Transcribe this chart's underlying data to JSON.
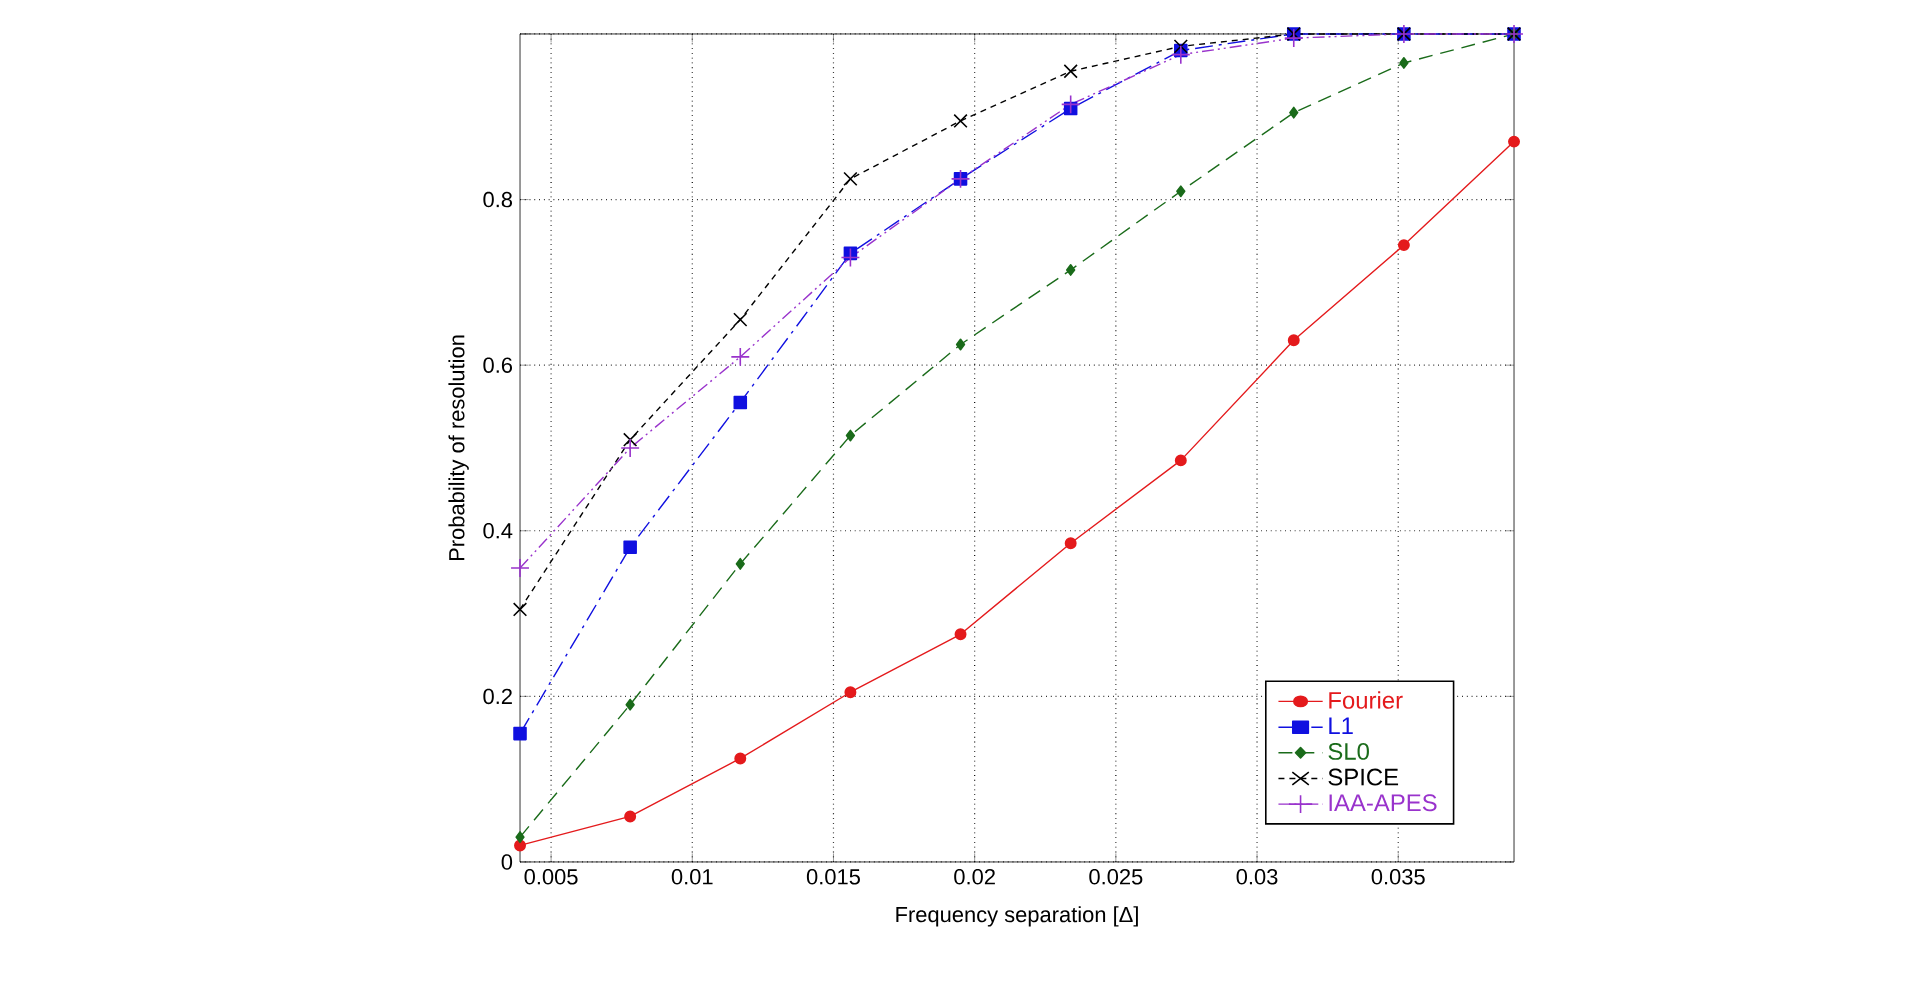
{
  "chart_data": {
    "type": "line",
    "xlabel": "Frequency separation [Δ]",
    "ylabel": "Probability of resolution",
    "x": [
      0.0039,
      0.0078,
      0.0117,
      0.0156,
      0.0195,
      0.0234,
      0.0273,
      0.0313,
      0.0352,
      0.0391
    ],
    "xlim": [
      0.0039,
      0.0391
    ],
    "ylim": [
      0,
      1
    ],
    "xticks": [
      0.005,
      0.01,
      0.015,
      0.02,
      0.025,
      0.03,
      0.035
    ],
    "yticks": [
      0,
      0.2,
      0.4,
      0.6,
      0.8,
      {
        "value": 1,
        "label": null
      }
    ],
    "grid": true,
    "legend": "bottom right",
    "series": [
      {
        "name": "Fourier",
        "color": "#e41a1c",
        "marker": "circle",
        "line_style": "solid",
        "values": [
          0.02,
          0.055,
          0.125,
          0.205,
          0.275,
          0.385,
          0.485,
          0.63,
          0.745,
          0.87
        ]
      },
      {
        "name": "L1",
        "color": "#1010e0",
        "marker": "square",
        "line_style": "dashdot",
        "values": [
          0.155,
          0.38,
          0.555,
          0.735,
          0.825,
          0.91,
          0.98,
          1.0,
          1.0,
          1.0
        ]
      },
      {
        "name": "SL0",
        "color": "#1a6b1a",
        "marker": "diamond",
        "line_style": "dashed",
        "values": [
          0.03,
          0.19,
          0.36,
          0.515,
          0.625,
          0.715,
          0.81,
          0.905,
          0.965,
          1.0
        ]
      },
      {
        "name": "SPICE",
        "color": "#000000",
        "marker": "cross",
        "line_style": "densely dashed",
        "values": [
          0.305,
          0.51,
          0.655,
          0.825,
          0.895,
          0.955,
          0.985,
          1.0,
          1.0,
          1.0
        ]
      },
      {
        "name": "IAA-APES",
        "color": "#9933cc",
        "marker": "plus",
        "line_style": "dashdotdot",
        "values": [
          0.355,
          0.5,
          0.61,
          0.73,
          0.825,
          0.915,
          0.975,
          0.995,
          1.0,
          1.0
        ]
      }
    ]
  }
}
